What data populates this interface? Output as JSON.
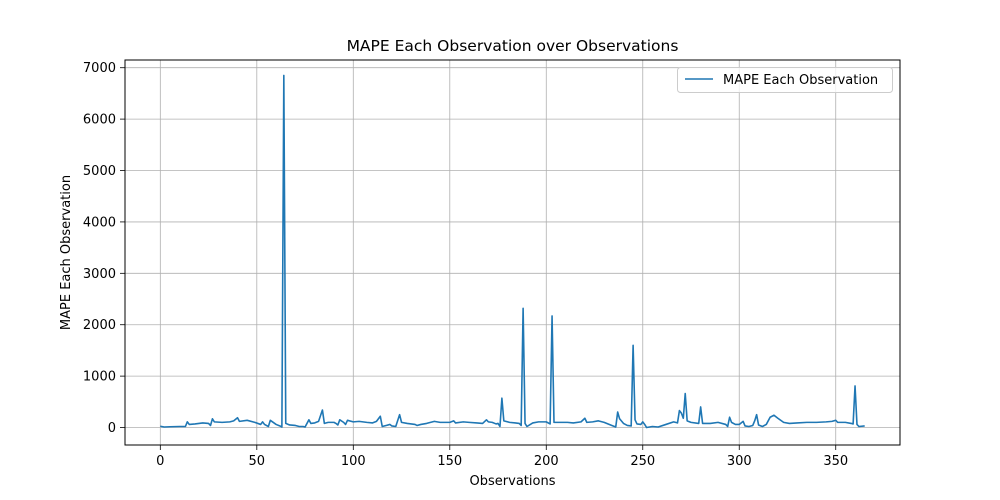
{
  "chart_data": {
    "type": "line",
    "title": "MAPE Each Observation over Observations",
    "xlabel": "Observations",
    "ylabel": "MAPE Each Observation",
    "xlim": [
      -18.3,
      383.3
    ],
    "ylim": [
      -340,
      7150
    ],
    "xticks": [
      0,
      50,
      100,
      150,
      200,
      250,
      300,
      350
    ],
    "yticks": [
      0,
      1000,
      2000,
      3000,
      4000,
      5000,
      6000,
      7000
    ],
    "grid": true,
    "legend": "top-right",
    "series": [
      {
        "name": "MAPE Each Observation",
        "color": "#1f77b4",
        "points": [
          [
            0,
            25
          ],
          [
            2,
            10
          ],
          [
            5,
            15
          ],
          [
            10,
            20
          ],
          [
            13,
            20
          ],
          [
            14,
            110
          ],
          [
            15,
            60
          ],
          [
            18,
            70
          ],
          [
            22,
            90
          ],
          [
            25,
            80
          ],
          [
            26,
            40
          ],
          [
            27,
            170
          ],
          [
            28,
            110
          ],
          [
            32,
            100
          ],
          [
            36,
            110
          ],
          [
            38,
            130
          ],
          [
            40,
            190
          ],
          [
            41,
            120
          ],
          [
            45,
            140
          ],
          [
            49,
            100
          ],
          [
            52,
            60
          ],
          [
            53,
            110
          ],
          [
            54,
            60
          ],
          [
            56,
            20
          ],
          [
            57,
            140
          ],
          [
            60,
            60
          ],
          [
            62,
            30
          ],
          [
            63,
            10
          ],
          [
            64,
            6850
          ],
          [
            65,
            80
          ],
          [
            67,
            50
          ],
          [
            70,
            40
          ],
          [
            72,
            20
          ],
          [
            74,
            20
          ],
          [
            75,
            10
          ],
          [
            77,
            150
          ],
          [
            78,
            80
          ],
          [
            80,
            90
          ],
          [
            82,
            120
          ],
          [
            84,
            340
          ],
          [
            85,
            80
          ],
          [
            87,
            100
          ],
          [
            90,
            100
          ],
          [
            91,
            80
          ],
          [
            92,
            50
          ],
          [
            93,
            150
          ],
          [
            95,
            100
          ],
          [
            96,
            60
          ],
          [
            97,
            140
          ],
          [
            100,
            110
          ],
          [
            103,
            120
          ],
          [
            107,
            100
          ],
          [
            110,
            90
          ],
          [
            112,
            120
          ],
          [
            114,
            220
          ],
          [
            115,
            20
          ],
          [
            117,
            40
          ],
          [
            119,
            60
          ],
          [
            120,
            30
          ],
          [
            122,
            20
          ],
          [
            124,
            250
          ],
          [
            125,
            100
          ],
          [
            128,
            80
          ],
          [
            130,
            70
          ],
          [
            132,
            60
          ],
          [
            133,
            40
          ],
          [
            135,
            60
          ],
          [
            138,
            80
          ],
          [
            140,
            100
          ],
          [
            142,
            120
          ],
          [
            145,
            100
          ],
          [
            148,
            100
          ],
          [
            150,
            100
          ],
          [
            152,
            130
          ],
          [
            153,
            90
          ],
          [
            157,
            110
          ],
          [
            160,
            100
          ],
          [
            164,
            90
          ],
          [
            167,
            80
          ],
          [
            169,
            150
          ],
          [
            170,
            110
          ],
          [
            172,
            100
          ],
          [
            174,
            70
          ],
          [
            175,
            80
          ],
          [
            176,
            20
          ],
          [
            177,
            570
          ],
          [
            178,
            130
          ],
          [
            181,
            100
          ],
          [
            184,
            90
          ],
          [
            186,
            80
          ],
          [
            187,
            40
          ],
          [
            188,
            2320
          ],
          [
            189,
            80
          ],
          [
            190,
            20
          ],
          [
            193,
            90
          ],
          [
            196,
            110
          ],
          [
            200,
            110
          ],
          [
            202,
            70
          ],
          [
            203,
            2170
          ],
          [
            204,
            100
          ],
          [
            207,
            100
          ],
          [
            211,
            100
          ],
          [
            214,
            90
          ],
          [
            218,
            110
          ],
          [
            220,
            180
          ],
          [
            221,
            100
          ],
          [
            224,
            110
          ],
          [
            227,
            130
          ],
          [
            230,
            100
          ],
          [
            234,
            40
          ],
          [
            236,
            10
          ],
          [
            237,
            300
          ],
          [
            238,
            170
          ],
          [
            240,
            80
          ],
          [
            242,
            40
          ],
          [
            244,
            30
          ],
          [
            245,
            1600
          ],
          [
            246,
            150
          ],
          [
            247,
            70
          ],
          [
            249,
            60
          ],
          [
            250,
            110
          ],
          [
            251,
            60
          ],
          [
            252,
            0
          ],
          [
            255,
            20
          ],
          [
            258,
            10
          ],
          [
            262,
            60
          ],
          [
            266,
            110
          ],
          [
            268,
            90
          ],
          [
            269,
            330
          ],
          [
            270,
            280
          ],
          [
            271,
            180
          ],
          [
            272,
            660
          ],
          [
            273,
            130
          ],
          [
            275,
            100
          ],
          [
            279,
            80
          ],
          [
            280,
            400
          ],
          [
            281,
            80
          ],
          [
            285,
            80
          ],
          [
            289,
            100
          ],
          [
            293,
            60
          ],
          [
            294,
            20
          ],
          [
            295,
            200
          ],
          [
            296,
            100
          ],
          [
            298,
            60
          ],
          [
            300,
            60
          ],
          [
            302,
            120
          ],
          [
            303,
            30
          ],
          [
            305,
            20
          ],
          [
            307,
            40
          ],
          [
            308,
            130
          ],
          [
            309,
            250
          ],
          [
            310,
            50
          ],
          [
            312,
            20
          ],
          [
            314,
            60
          ],
          [
            316,
            200
          ],
          [
            318,
            240
          ],
          [
            320,
            180
          ],
          [
            323,
            100
          ],
          [
            326,
            80
          ],
          [
            330,
            90
          ],
          [
            335,
            100
          ],
          [
            340,
            100
          ],
          [
            345,
            110
          ],
          [
            348,
            120
          ],
          [
            350,
            140
          ],
          [
            351,
            100
          ],
          [
            355,
            100
          ],
          [
            358,
            80
          ],
          [
            359,
            70
          ],
          [
            360,
            810
          ],
          [
            361,
            60
          ],
          [
            362,
            20
          ],
          [
            365,
            30
          ]
        ]
      }
    ]
  }
}
